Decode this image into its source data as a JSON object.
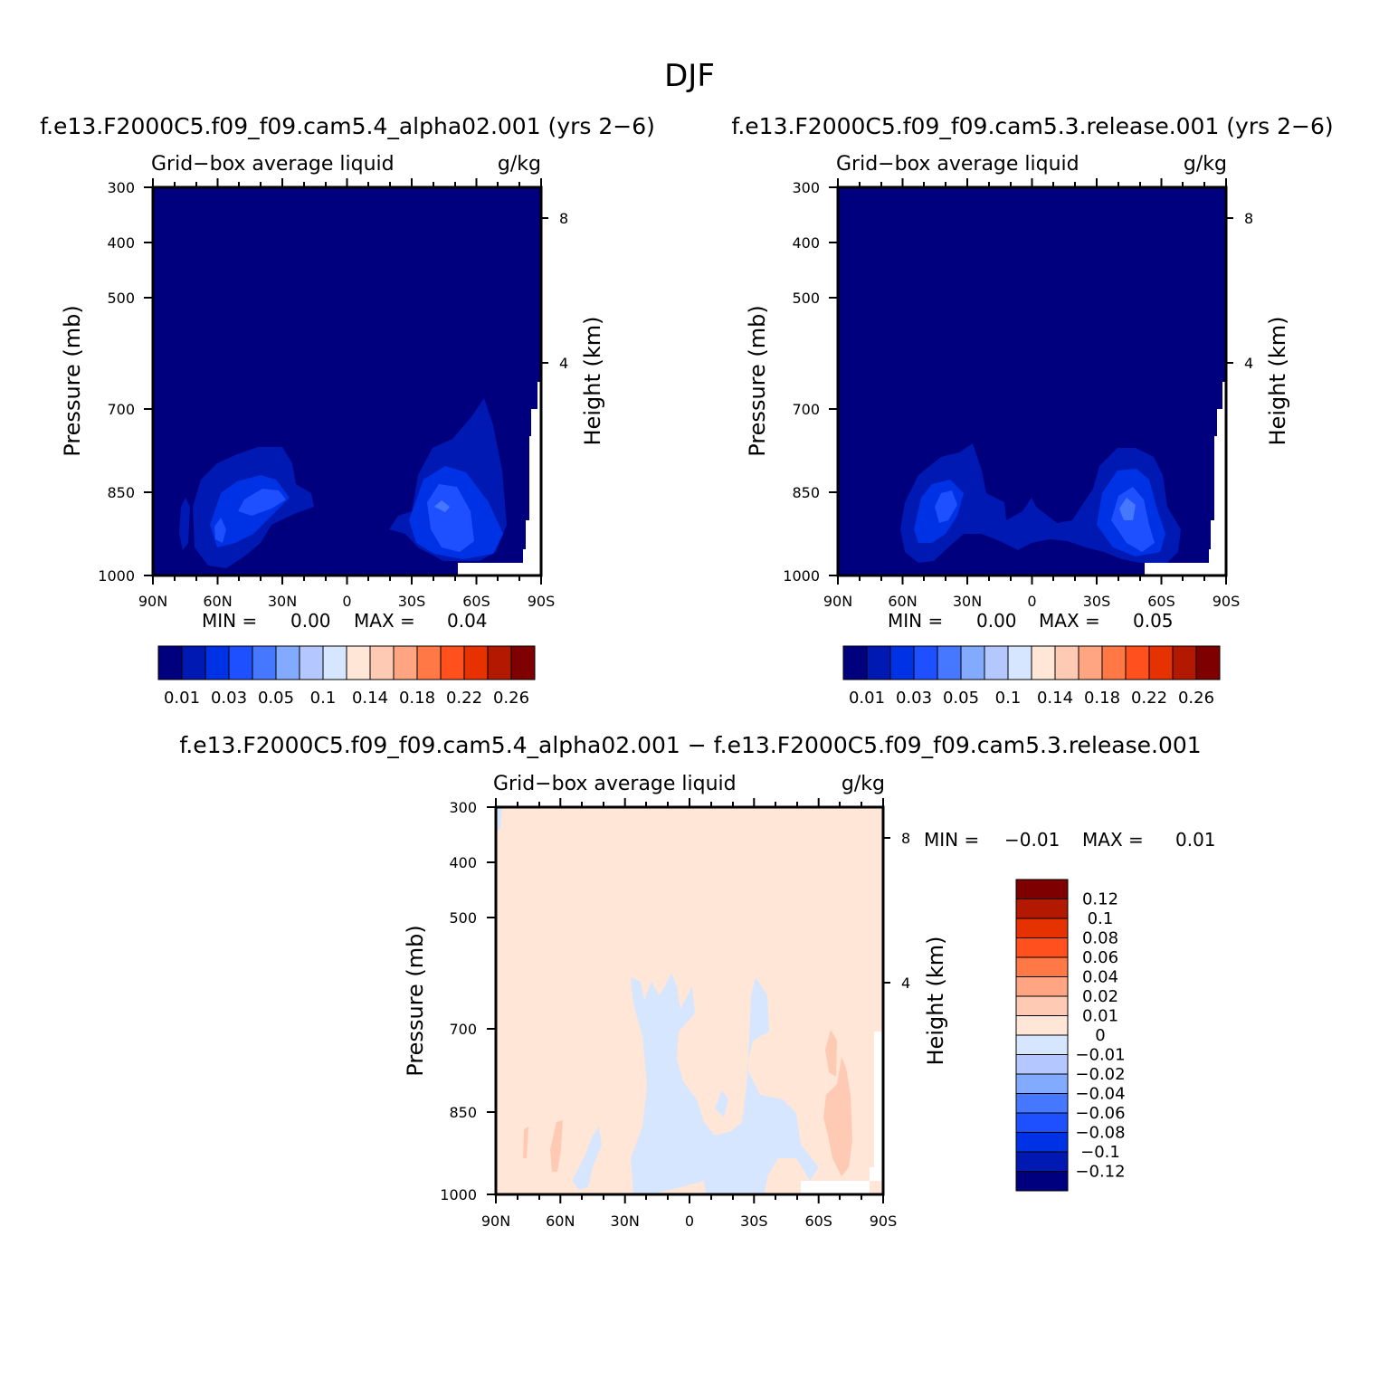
{
  "title": "DJF",
  "colors": {
    "seq": [
      "#00007f",
      "#0019b2",
      "#0032e5",
      "#1e50ff",
      "#4678ff",
      "#82aaff",
      "#b4c8ff",
      "#d7e6ff",
      "#ffe6d7",
      "#ffcab4",
      "#ffa582",
      "#ff7846",
      "#ff501e",
      "#e53200",
      "#b21900",
      "#7f0000"
    ],
    "diff": [
      "#00007f",
      "#0019b2",
      "#0032e5",
      "#1e50ff",
      "#4678ff",
      "#82aaff",
      "#b4c8ff",
      "#d7e6ff",
      "#ffe6d7",
      "#ffcab4",
      "#ffa582",
      "#ff7846",
      "#ff501e",
      "#e53200",
      "#b21900",
      "#7f0000"
    ]
  },
  "panels": {
    "test": {
      "run_title": "f.e13.F2000C5.f09_f09.cam5.4_alpha02.001 (yrs 2−6)",
      "left_label": "Grid−box average liquid",
      "units": "g/kg",
      "min_label": "MIN =",
      "min_value": "0.00",
      "max_label": "MAX =",
      "max_value": "0.04"
    },
    "control": {
      "run_title": "f.e13.F2000C5.f09_f09.cam5.3.release.001 (yrs 2−6)",
      "left_label": "Grid−box average liquid",
      "units": "g/kg",
      "min_label": "MIN =",
      "min_value": "0.00",
      "max_label": "MAX =",
      "max_value": "0.05"
    },
    "diff": {
      "run_title": "f.e13.F2000C5.f09_f09.cam5.4_alpha02.001 − f.e13.F2000C5.f09_f09.cam5.3.release.001",
      "left_label": "Grid−box average liquid",
      "units": "g/kg",
      "min_label": "MIN =",
      "min_value": "−0.01",
      "max_label": "MAX =",
      "max_value": "0.01"
    }
  },
  "axes": {
    "ylabel": "Pressure (mb)",
    "ylabel_right": "Height (km)",
    "yticks": [
      "300",
      "400",
      "500",
      "700",
      "850",
      "1000"
    ],
    "xticks": [
      "90N",
      "60N",
      "30N",
      "0",
      "30S",
      "60S",
      "90S"
    ],
    "height_ticks": [
      "8",
      "4"
    ]
  },
  "colorbar_seq_labels": [
    "0.01",
    "0.03",
    "0.05",
    "0.1",
    "0.14",
    "0.18",
    "0.22",
    "0.26"
  ],
  "colorbar_diff_labels": [
    "0.12",
    "0.1",
    "0.08",
    "0.06",
    "0.04",
    "0.02",
    "0.01",
    "0",
    "−0.01",
    "−0.02",
    "−0.04",
    "−0.06",
    "−0.08",
    "−0.1",
    "−0.12"
  ],
  "chart_data": [
    {
      "type": "heatmap",
      "title": "f.e13.F2000C5.f09_f09.cam5.4_alpha02.001 (yrs 2−6)",
      "variable": "Grid−box average liquid",
      "units": "g/kg",
      "xlabel": "",
      "ylabel": "Pressure (mb)",
      "y2label": "Height (km)",
      "xlim": [
        "90N",
        "90S"
      ],
      "ylim": [
        1000,
        300
      ],
      "contour_levels": [
        0.01,
        0.02,
        0.03,
        0.04,
        0.05,
        0.07,
        0.1,
        0.12,
        0.14,
        0.16,
        0.18,
        0.2,
        0.22,
        0.24,
        0.26
      ],
      "min": 0.0,
      "max": 0.04,
      "features": [
        {
          "region": "60N–30N",
          "pressure_mb": [
            780,
            1000
          ],
          "peak_level_gkg": 0.03
        },
        {
          "region": "30S–80S",
          "pressure_mb": [
            680,
            1000
          ],
          "peak_level_gkg": 0.04
        }
      ]
    },
    {
      "type": "heatmap",
      "title": "f.e13.F2000C5.f09_f09.cam5.3.release.001 (yrs 2−6)",
      "variable": "Grid−box average liquid",
      "units": "g/kg",
      "xlabel": "",
      "ylabel": "Pressure (mb)",
      "y2label": "Height (km)",
      "xlim": [
        "90N",
        "90S"
      ],
      "ylim": [
        1000,
        300
      ],
      "contour_levels": [
        0.01,
        0.02,
        0.03,
        0.04,
        0.05,
        0.07,
        0.1,
        0.12,
        0.14,
        0.16,
        0.18,
        0.2,
        0.22,
        0.24,
        0.26
      ],
      "min": 0.0,
      "max": 0.05,
      "features": [
        {
          "region": "70N–20N",
          "pressure_mb": [
            780,
            1000
          ],
          "peak_level_gkg": 0.03
        },
        {
          "region": "30S–70S",
          "pressure_mb": [
            780,
            1000
          ],
          "peak_level_gkg": 0.05
        }
      ]
    },
    {
      "type": "heatmap",
      "title": "f.e13.F2000C5.f09_f09.cam5.4_alpha02.001 − f.e13.F2000C5.f09_f09.cam5.3.release.001",
      "variable": "Grid−box average liquid",
      "units": "g/kg",
      "xlabel": "",
      "ylabel": "Pressure (mb)",
      "y2label": "Height (km)",
      "xlim": [
        "90N",
        "90S"
      ],
      "ylim": [
        1000,
        300
      ],
      "contour_levels": [
        -0.12,
        -0.1,
        -0.08,
        -0.06,
        -0.04,
        -0.02,
        -0.01,
        0,
        0.01,
        0.02,
        0.04,
        0.06,
        0.08,
        0.1,
        0.12
      ],
      "min": -0.01,
      "max": 0.01,
      "features": [
        {
          "region": "30N–30S",
          "pressure_mb": [
            600,
            1000
          ],
          "sign": "negative"
        },
        {
          "region": "60S–80S",
          "pressure_mb": [
            680,
            950
          ],
          "sign": "positive"
        }
      ]
    }
  ]
}
